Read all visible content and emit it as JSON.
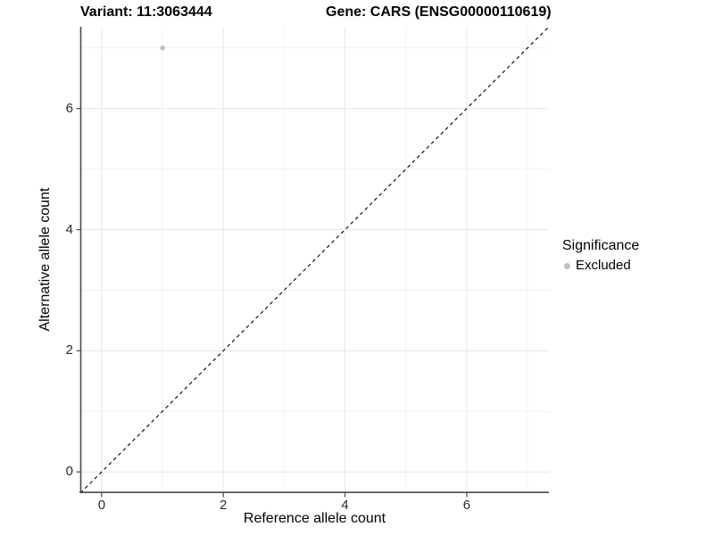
{
  "titles": {
    "variant": "Variant: 11:3063444",
    "gene": "Gene: CARS (ENSG00000110619)"
  },
  "chart_data": {
    "type": "scatter",
    "title_variant": "Variant: 11:3063444",
    "title_gene": "Gene: CARS (ENSG00000110619)",
    "xlabel": "Reference allele count",
    "ylabel": "Alternative allele count",
    "xlim": [
      -0.35,
      7.35
    ],
    "ylim": [
      -0.35,
      7.35
    ],
    "xticks": [
      0,
      2,
      4,
      6
    ],
    "yticks": [
      0,
      2,
      4,
      6
    ],
    "grid": "on",
    "grid_major": [
      0,
      2,
      4,
      6
    ],
    "grid_minor": [
      1,
      3,
      5,
      7
    ],
    "series": [
      {
        "name": "Excluded",
        "color": "#c0c0c0",
        "points": [
          {
            "x": 1,
            "y": 7
          }
        ]
      }
    ],
    "reference_line": {
      "kind": "identity",
      "style": "dashed",
      "from": [
        -0.35,
        -0.35
      ],
      "to": [
        7.35,
        7.35
      ],
      "color": "#000000"
    },
    "legend": {
      "title": "Significance",
      "position": "right",
      "entries": [
        {
          "label": "Excluded",
          "color": "#c0c0c0"
        }
      ]
    }
  },
  "colors": {
    "background": "#ffffff",
    "grid_major": "#e7e7e7",
    "grid_minor": "#f2f2f2",
    "axis_line": "#4a4a4a",
    "tick_mark": "#4a4a4a",
    "tick_label": "#2b2b2b",
    "point": "#c0c0c0",
    "identity_line": "#000000"
  }
}
